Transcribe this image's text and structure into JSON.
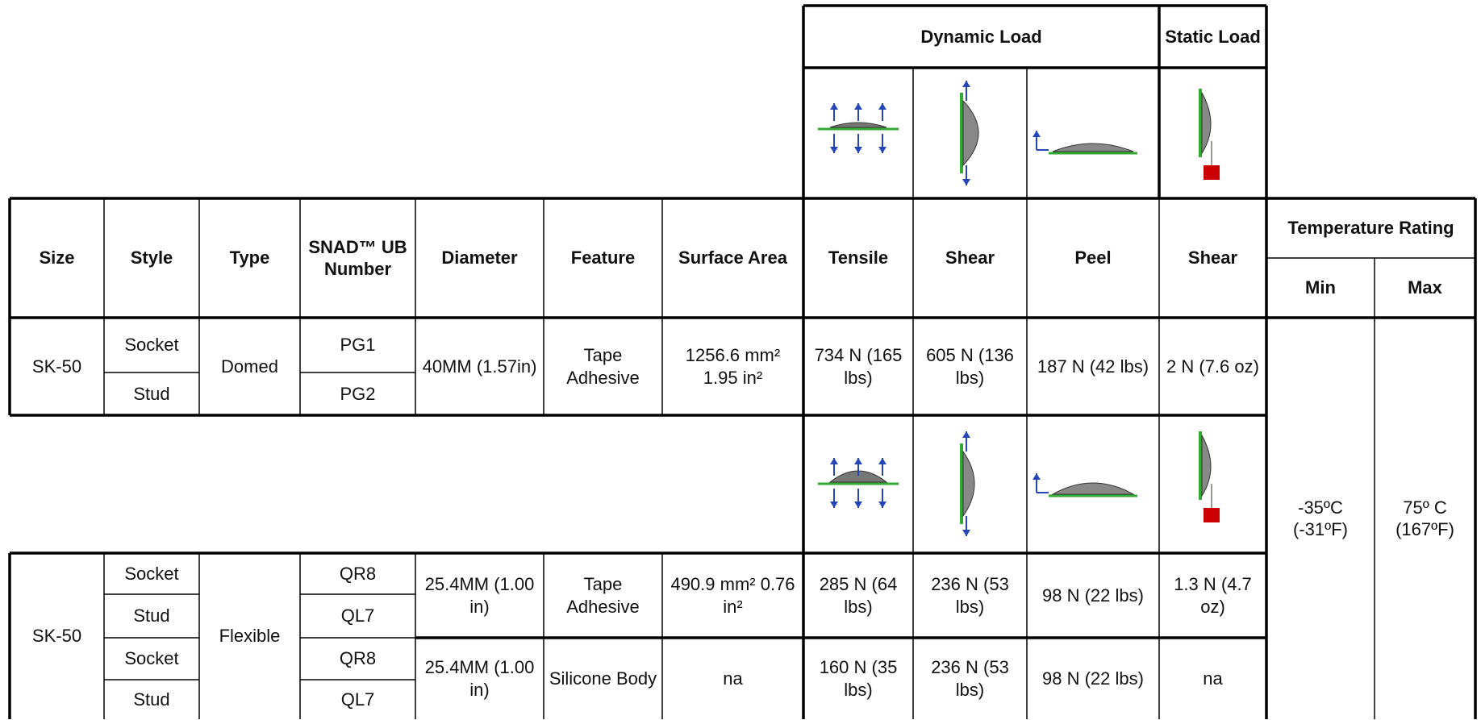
{
  "header": {
    "dynamic_load": "Dynamic Load",
    "static_load": "Static Load"
  },
  "table": {
    "columns": [
      "Size",
      "Style",
      "Type",
      "SNAD™ UB Number",
      "Diameter",
      "Feature",
      "Surface Area",
      "Tensile",
      "Shear",
      "Peel",
      "Shear"
    ],
    "temperature_rating": "Temperature Rating",
    "temperature_columns": [
      "Min",
      "Max"
    ],
    "groups": [
      {
        "size": "SK-50",
        "type": "Domed",
        "rows": [
          {
            "style": "Socket",
            "number": "PG1"
          },
          {
            "style": "Stud",
            "number": "PG2"
          }
        ],
        "subgroups": [
          {
            "diameter": "40MM (1.57in)",
            "feature": "Tape Adhesive",
            "surface_area": "1256.6 mm² 1.95 in²",
            "tensile": "734 N (165 lbs)",
            "shear": "605 N (136 lbs)",
            "peel": "187 N (42 lbs)",
            "static_shear": "2 N (7.6 oz)"
          }
        ]
      },
      {
        "size": "SK-50",
        "type": "Flexible",
        "rows": [
          {
            "style": "Socket",
            "number": "QR8"
          },
          {
            "style": "Stud",
            "number": "QL7"
          },
          {
            "style": "Socket",
            "number": "QR8"
          },
          {
            "style": "Stud",
            "number": "QL7"
          }
        ],
        "subgroups": [
          {
            "diameter": "25.4MM (1.00 in)",
            "feature": "Tape Adhesive",
            "surface_area": "490.9 mm² 0.76 in²",
            "tensile": "285 N (64 lbs)",
            "shear": "236 N (53 lbs)",
            "peel": "98 N (22 lbs)",
            "static_shear": "1.3 N (4.7 oz)"
          },
          {
            "diameter": "25.4MM (1.00 in)",
            "feature": "Silicone Body",
            "surface_area": "na",
            "tensile": "160 N (35 lbs)",
            "shear": "236 N (53 lbs)",
            "peel": "98 N (22 lbs)",
            "static_shear": "na"
          }
        ]
      }
    ],
    "temperature": {
      "min": "-35ºC (-31ºF)",
      "max": "75º C (167ºF)"
    }
  }
}
